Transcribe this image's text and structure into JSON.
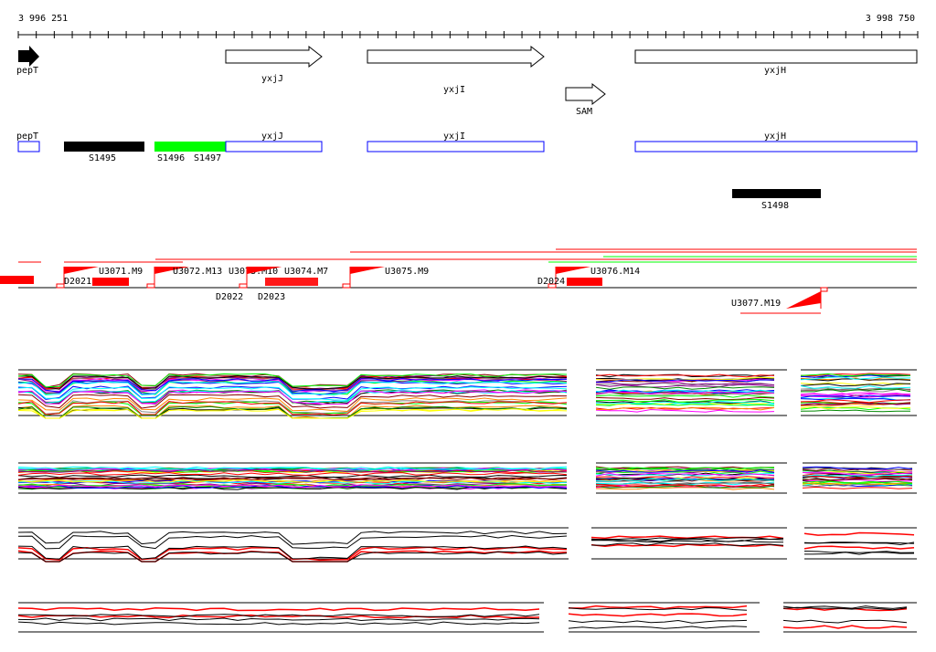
{
  "axis": {
    "start": "3 996 251",
    "end": "3 998 750"
  },
  "genes": [
    {
      "name": "pepT",
      "type": "filled"
    },
    {
      "name": "yxjJ",
      "type": "open"
    },
    {
      "name": "yxjI",
      "type": "open"
    },
    {
      "name": "SAM",
      "type": "open"
    },
    {
      "name": "yxjH",
      "type": "box"
    }
  ],
  "segments": {
    "pepT": "pepT",
    "S1495": "S1495",
    "S1496": "S1496",
    "S1497": "S1497",
    "yxjJ": "yxjJ",
    "yxjI": "yxjI",
    "yxjH": "yxjH",
    "S1498": "S1498"
  },
  "units": [
    "U3071.M9",
    "U3072.M13",
    "U3073.M10",
    "U3074.M7",
    "U3075.M9",
    "U3076.M14",
    "U3077.M19"
  ],
  "downs": [
    "D2021",
    "D2022",
    "D2023",
    "D2024"
  ],
  "colors": {
    "red": "#ff0000",
    "green": "#00ff00",
    "blue": "#0000ff",
    "black": "#000000"
  }
}
